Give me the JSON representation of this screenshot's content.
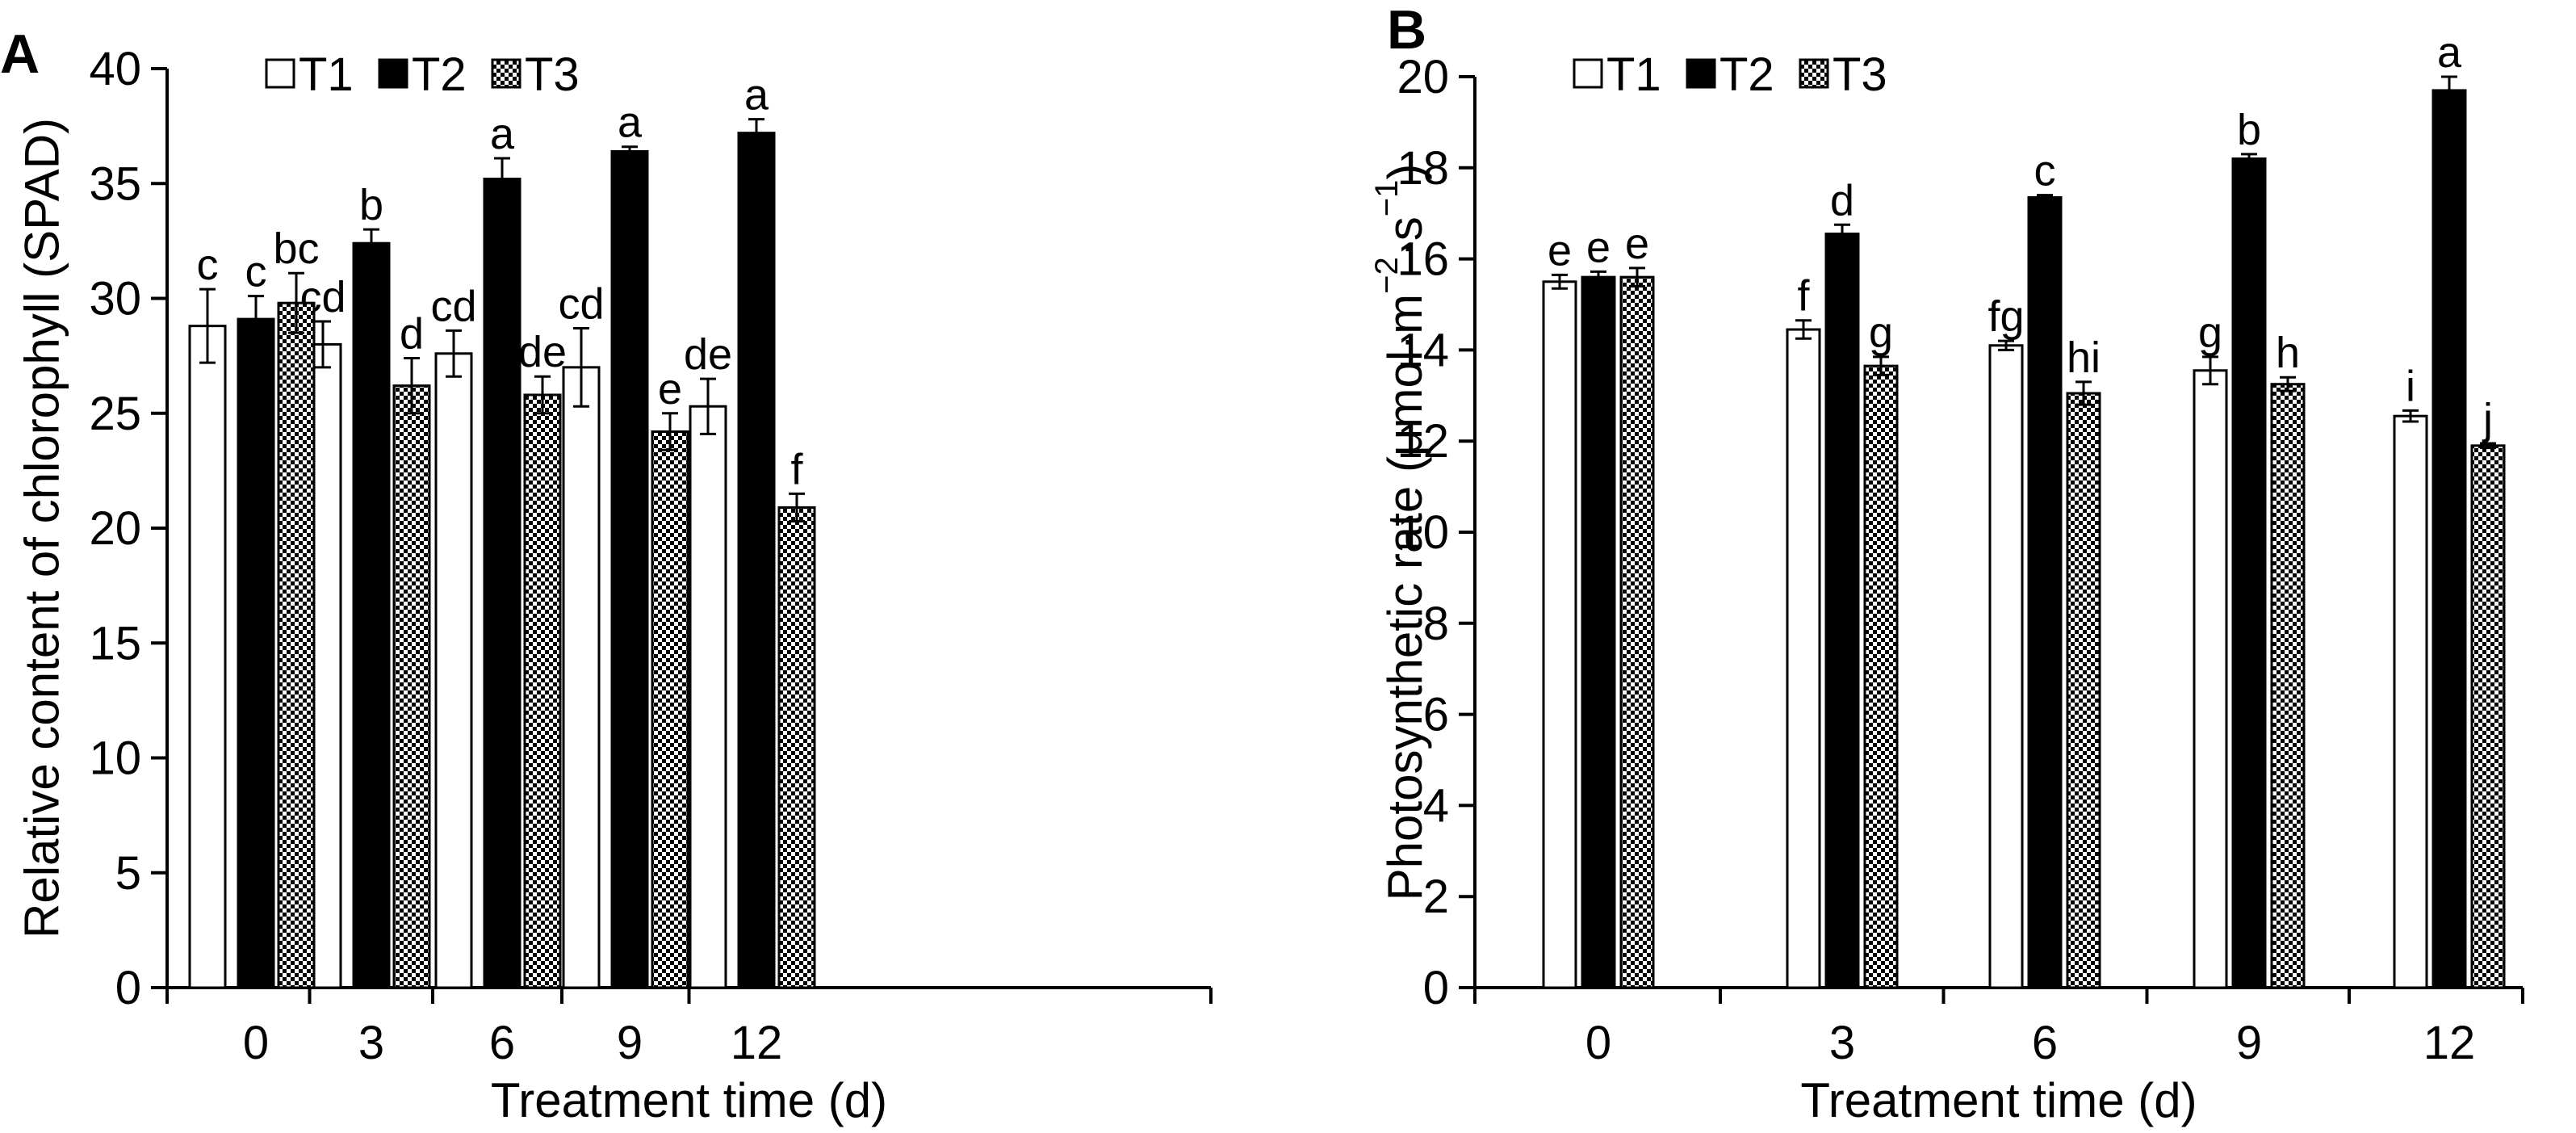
{
  "chart_data": [
    {
      "type": "bar",
      "panel_label": "A",
      "categories": [
        "0",
        "3",
        "6",
        "9",
        "12"
      ],
      "series": [
        {
          "name": "T1",
          "values": [
            28.8,
            28.0,
            27.6,
            27.0,
            25.3
          ],
          "errors": [
            1.6,
            1.0,
            1.0,
            1.7,
            1.2
          ],
          "letters": [
            "c",
            "cd",
            "cd",
            "cd",
            "de"
          ]
        },
        {
          "name": "T2",
          "values": [
            29.1,
            32.4,
            35.2,
            36.4,
            37.2
          ],
          "errors": [
            1.0,
            0.6,
            0.9,
            0.2,
            0.6
          ],
          "letters": [
            "c",
            "b",
            "a",
            "a",
            "a"
          ]
        },
        {
          "name": "T3",
          "values": [
            29.8,
            26.2,
            25.8,
            24.2,
            20.9
          ],
          "errors": [
            1.3,
            1.2,
            0.8,
            0.8,
            0.6
          ],
          "letters": [
            "bc",
            "d",
            "de",
            "e",
            "f"
          ]
        }
      ],
      "xlabel": "Treatment time (d)",
      "ylabel": "Relative content of chlorophyll (SPAD)",
      "ylim": [
        0,
        40
      ],
      "yticks": [
        "0",
        "5",
        "10",
        "15",
        "20",
        "25",
        "30",
        "35",
        "40"
      ],
      "legend": "top-left",
      "grid": false
    },
    {
      "type": "bar",
      "panel_label": "B",
      "categories": [
        "0",
        "3",
        "6",
        "9",
        "12"
      ],
      "series": [
        {
          "name": "T1",
          "values": [
            15.5,
            14.45,
            14.1,
            13.55,
            12.55
          ],
          "errors": [
            0.15,
            0.2,
            0.1,
            0.3,
            0.12
          ],
          "letters": [
            "e",
            "f",
            "fg",
            "g",
            "i"
          ]
        },
        {
          "name": "T2",
          "values": [
            15.6,
            16.55,
            17.35,
            18.2,
            19.7
          ],
          "errors": [
            0.12,
            0.2,
            0.05,
            0.1,
            0.3
          ],
          "letters": [
            "e",
            "d",
            "c",
            "b",
            "a"
          ]
        },
        {
          "name": "T3",
          "values": [
            15.6,
            13.65,
            13.05,
            13.25,
            11.9
          ],
          "errors": [
            0.2,
            0.2,
            0.25,
            0.15,
            0.05
          ],
          "letters": [
            "e",
            "g",
            "hi",
            "h",
            "j"
          ]
        }
      ],
      "xlabel": "Treatment time (d)",
      "ylabel_parts": [
        "Photosynthetic rate (μmol·m",
        "−2",
        "·s",
        "−1",
        ")"
      ],
      "ylim": [
        0,
        20
      ],
      "yticks": [
        "0",
        "2",
        "4",
        "6",
        "8",
        "10",
        "12",
        "14",
        "16",
        "18",
        "20"
      ],
      "legend": "top-left",
      "grid": false
    }
  ],
  "colors": {
    "axis": "#000000",
    "T1_fill": "#ffffff",
    "T2_fill": "#000000",
    "T3_pattern_dark": "#000000",
    "T3_pattern_light": "#ffffff"
  }
}
